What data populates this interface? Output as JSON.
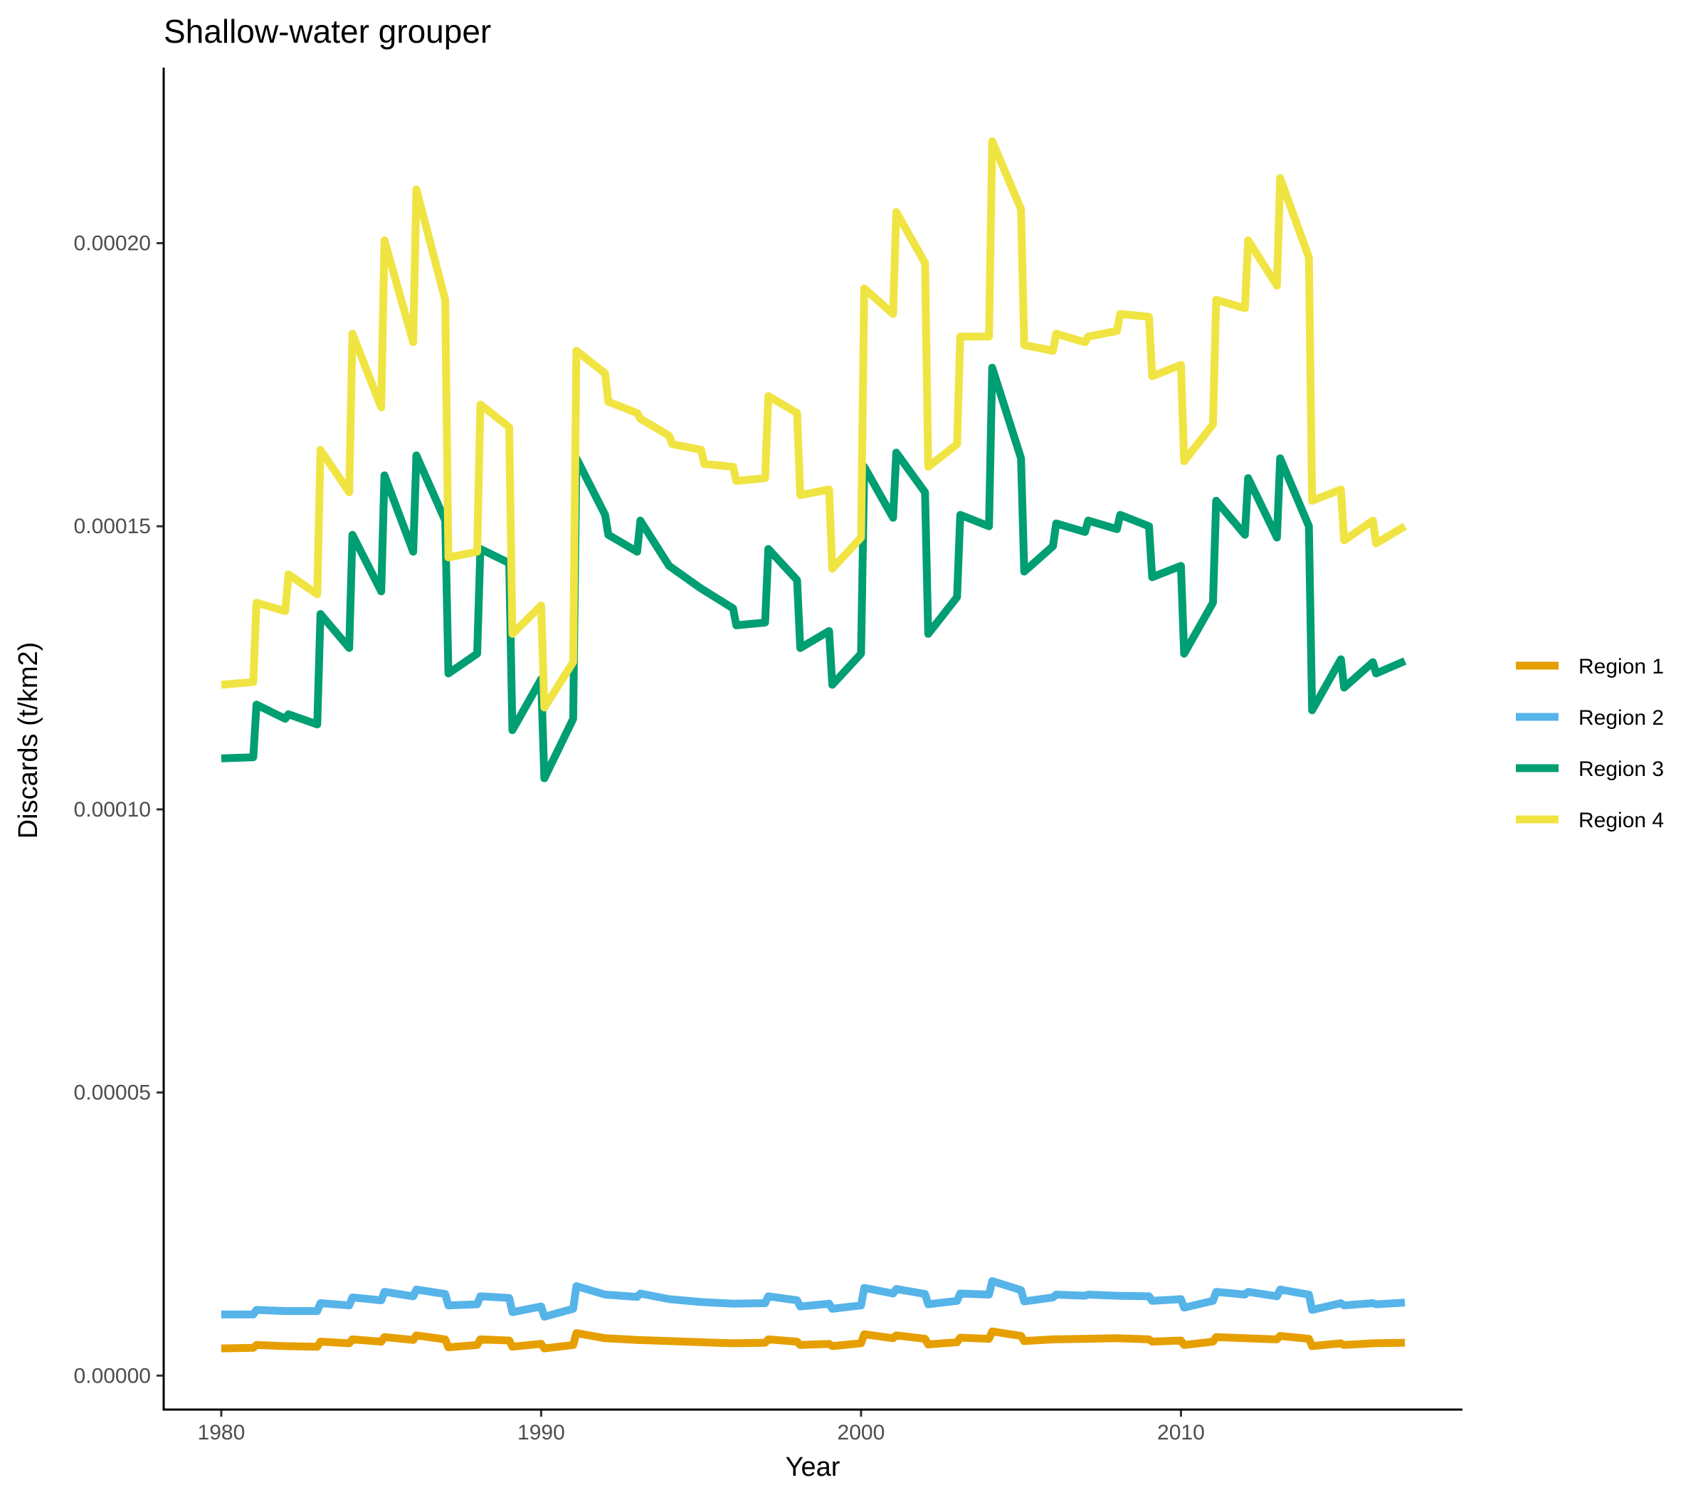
{
  "chart_data": {
    "type": "line",
    "title": "Shallow-water grouper",
    "xlabel": "Year",
    "ylabel": "Discards (t/km2)",
    "xlim": [
      1978.2,
      2018.8
    ],
    "ylim": [
      -6e-06,
      0.000231
    ],
    "x_ticks": [
      1980,
      1990,
      2000,
      2010
    ],
    "x_tick_labels": [
      "1980",
      "1990",
      "2000",
      "2010"
    ],
    "y_ticks": [
      0,
      5e-05,
      0.0001,
      0.00015,
      0.0002
    ],
    "y_tick_labels": [
      "0.00000",
      "0.00005",
      "0.00010",
      "0.00015",
      "0.00020"
    ],
    "grid": false,
    "legend_position": "right",
    "series": [
      {
        "name": "Region 1",
        "color": "#E69F00",
        "points": [
          [
            1980,
            4.8e-06
          ],
          [
            1981,
            4.9e-06
          ],
          [
            1981.1,
            5.4e-06
          ],
          [
            1982,
            5.2e-06
          ],
          [
            1983,
            5.1e-06
          ],
          [
            1983.1,
            6e-06
          ],
          [
            1984,
            5.7e-06
          ],
          [
            1984.1,
            6.4e-06
          ],
          [
            1985,
            6e-06
          ],
          [
            1985.1,
            6.8e-06
          ],
          [
            1986,
            6.3e-06
          ],
          [
            1986.1,
            7.1e-06
          ],
          [
            1987,
            6.4e-06
          ],
          [
            1987.1,
            5e-06
          ],
          [
            1988,
            5.4e-06
          ],
          [
            1988.1,
            6.4e-06
          ],
          [
            1989,
            6.2e-06
          ],
          [
            1989.1,
            5.1e-06
          ],
          [
            1990,
            5.6e-06
          ],
          [
            1990.1,
            4.8e-06
          ],
          [
            1991,
            5.4e-06
          ],
          [
            1991.1,
            7.5e-06
          ],
          [
            1992,
            6.6e-06
          ],
          [
            1993,
            6.3e-06
          ],
          [
            1994,
            6.1e-06
          ],
          [
            1995,
            5.9e-06
          ],
          [
            1996,
            5.7e-06
          ],
          [
            1997,
            5.8e-06
          ],
          [
            1997.1,
            6.4e-06
          ],
          [
            1998,
            6e-06
          ],
          [
            1998.1,
            5.4e-06
          ],
          [
            1999,
            5.6e-06
          ],
          [
            1999.1,
            5.2e-06
          ],
          [
            2000,
            5.7e-06
          ],
          [
            2000.1,
            7.3e-06
          ],
          [
            2001,
            6.6e-06
          ],
          [
            2001.1,
            7.1e-06
          ],
          [
            2002,
            6.5e-06
          ],
          [
            2002.1,
            5.5e-06
          ],
          [
            2003,
            5.9e-06
          ],
          [
            2003.1,
            6.7e-06
          ],
          [
            2004,
            6.5e-06
          ],
          [
            2004.1,
            7.8e-06
          ],
          [
            2005,
            7e-06
          ],
          [
            2005.1,
            6.1e-06
          ],
          [
            2006,
            6.4e-06
          ],
          [
            2007,
            6.5e-06
          ],
          [
            2008,
            6.6e-06
          ],
          [
            2009,
            6.4e-06
          ],
          [
            2009.1,
            6e-06
          ],
          [
            2010,
            6.2e-06
          ],
          [
            2010.1,
            5.4e-06
          ],
          [
            2011,
            6e-06
          ],
          [
            2011.1,
            6.8e-06
          ],
          [
            2012,
            6.6e-06
          ],
          [
            2013,
            6.4e-06
          ],
          [
            2013.1,
            7e-06
          ],
          [
            2014,
            6.5e-06
          ],
          [
            2014.1,
            5.2e-06
          ],
          [
            2015,
            5.7e-06
          ],
          [
            2015.1,
            5.4e-06
          ],
          [
            2016,
            5.7e-06
          ],
          [
            2017,
            5.8e-06
          ]
        ]
      },
      {
        "name": "Region 2",
        "color": "#56B4E9",
        "points": [
          [
            1980,
            1.08e-05
          ],
          [
            1981,
            1.08e-05
          ],
          [
            1981.1,
            1.16e-05
          ],
          [
            1982,
            1.14e-05
          ],
          [
            1983,
            1.14e-05
          ],
          [
            1983.1,
            1.28e-05
          ],
          [
            1984,
            1.24e-05
          ],
          [
            1984.1,
            1.38e-05
          ],
          [
            1985,
            1.33e-05
          ],
          [
            1985.1,
            1.48e-05
          ],
          [
            1986,
            1.4e-05
          ],
          [
            1986.1,
            1.52e-05
          ],
          [
            1987,
            1.44e-05
          ],
          [
            1987.1,
            1.24e-05
          ],
          [
            1988,
            1.26e-05
          ],
          [
            1988.1,
            1.4e-05
          ],
          [
            1989,
            1.37e-05
          ],
          [
            1989.1,
            1.12e-05
          ],
          [
            1990,
            1.22e-05
          ],
          [
            1990.1,
            1.04e-05
          ],
          [
            1991,
            1.18e-05
          ],
          [
            1991.1,
            1.58e-05
          ],
          [
            1992,
            1.43e-05
          ],
          [
            1993,
            1.39e-05
          ],
          [
            1993.1,
            1.45e-05
          ],
          [
            1994,
            1.35e-05
          ],
          [
            1995,
            1.3e-05
          ],
          [
            1996,
            1.27e-05
          ],
          [
            1997,
            1.28e-05
          ],
          [
            1997.1,
            1.4e-05
          ],
          [
            1998,
            1.33e-05
          ],
          [
            1998.1,
            1.22e-05
          ],
          [
            1999,
            1.27e-05
          ],
          [
            1999.1,
            1.18e-05
          ],
          [
            2000,
            1.24e-05
          ],
          [
            2000.1,
            1.55e-05
          ],
          [
            2001,
            1.45e-05
          ],
          [
            2001.1,
            1.53e-05
          ],
          [
            2002,
            1.44e-05
          ],
          [
            2002.1,
            1.26e-05
          ],
          [
            2003,
            1.32e-05
          ],
          [
            2003.1,
            1.45e-05
          ],
          [
            2004,
            1.43e-05
          ],
          [
            2004.1,
            1.67e-05
          ],
          [
            2005,
            1.51e-05
          ],
          [
            2005.1,
            1.31e-05
          ],
          [
            2006,
            1.38e-05
          ],
          [
            2006.1,
            1.43e-05
          ],
          [
            2007,
            1.41e-05
          ],
          [
            2007.1,
            1.43e-05
          ],
          [
            2008,
            1.41e-05
          ],
          [
            2009,
            1.4e-05
          ],
          [
            2009.1,
            1.32e-05
          ],
          [
            2010,
            1.35e-05
          ],
          [
            2010.1,
            1.2e-05
          ],
          [
            2011,
            1.32e-05
          ],
          [
            2011.1,
            1.48e-05
          ],
          [
            2012,
            1.43e-05
          ],
          [
            2012.1,
            1.48e-05
          ],
          [
            2013,
            1.4e-05
          ],
          [
            2013.1,
            1.52e-05
          ],
          [
            2014,
            1.43e-05
          ],
          [
            2014.1,
            1.16e-05
          ],
          [
            2015,
            1.28e-05
          ],
          [
            2015.1,
            1.24e-05
          ],
          [
            2016,
            1.28e-05
          ],
          [
            2016.1,
            1.26e-05
          ],
          [
            2017,
            1.29e-05
          ]
        ]
      },
      {
        "name": "Region 3",
        "color": "#009E73",
        "points": [
          [
            1980,
            0.000109
          ],
          [
            1981,
            0.0001092
          ],
          [
            1981.1,
            0.0001185
          ],
          [
            1982,
            0.000116
          ],
          [
            1982.1,
            0.0001168
          ],
          [
            1983,
            0.000115
          ],
          [
            1983.1,
            0.0001345
          ],
          [
            1984,
            0.0001285
          ],
          [
            1984.1,
            0.0001485
          ],
          [
            1985,
            0.0001385
          ],
          [
            1985.1,
            0.000159
          ],
          [
            1986,
            0.0001455
          ],
          [
            1986.1,
            0.0001625
          ],
          [
            1987,
            0.000151
          ],
          [
            1987.1,
            0.000124
          ],
          [
            1988,
            0.0001275
          ],
          [
            1988.1,
            0.000146
          ],
          [
            1989,
            0.0001435
          ],
          [
            1989.1,
            0.000114
          ],
          [
            1990,
            0.000123
          ],
          [
            1990.1,
            0.0001055
          ],
          [
            1991,
            0.000116
          ],
          [
            1991.1,
            0.000162
          ],
          [
            1992,
            0.000152
          ],
          [
            1992.1,
            0.0001485
          ],
          [
            1993,
            0.0001455
          ],
          [
            1993.1,
            0.000151
          ],
          [
            1994,
            0.000143
          ],
          [
            1995,
            0.000139
          ],
          [
            1996,
            0.0001355
          ],
          [
            1996.1,
            0.0001325
          ],
          [
            1997,
            0.000133
          ],
          [
            1997.1,
            0.000146
          ],
          [
            1998,
            0.0001405
          ],
          [
            1998.1,
            0.0001285
          ],
          [
            1999,
            0.0001315
          ],
          [
            1999.1,
            0.000122
          ],
          [
            2000,
            0.0001275
          ],
          [
            2000.1,
            0.0001605
          ],
          [
            2001,
            0.0001515
          ],
          [
            2001.1,
            0.000163
          ],
          [
            2002,
            0.000156
          ],
          [
            2002.1,
            0.000131
          ],
          [
            2003,
            0.0001375
          ],
          [
            2003.1,
            0.000152
          ],
          [
            2004,
            0.00015
          ],
          [
            2004.1,
            0.000178
          ],
          [
            2005,
            0.000162
          ],
          [
            2005.1,
            0.000142
          ],
          [
            2006,
            0.0001465
          ],
          [
            2006.1,
            0.0001505
          ],
          [
            2007,
            0.000149
          ],
          [
            2007.1,
            0.000151
          ],
          [
            2008,
            0.0001495
          ],
          [
            2008.1,
            0.000152
          ],
          [
            2009,
            0.00015
          ],
          [
            2009.1,
            0.000141
          ],
          [
            2010,
            0.000143
          ],
          [
            2010.1,
            0.0001275
          ],
          [
            2011,
            0.0001365
          ],
          [
            2011.1,
            0.0001545
          ],
          [
            2012,
            0.0001485
          ],
          [
            2012.1,
            0.0001585
          ],
          [
            2013,
            0.000148
          ],
          [
            2013.1,
            0.000162
          ],
          [
            2014,
            0.00015
          ],
          [
            2014.1,
            0.0001175
          ],
          [
            2015,
            0.0001265
          ],
          [
            2015.1,
            0.0001215
          ],
          [
            2016,
            0.000126
          ],
          [
            2016.1,
            0.000124
          ],
          [
            2017,
            0.0001262
          ]
        ]
      },
      {
        "name": "Region 4",
        "color": "#F0E442",
        "points": [
          [
            1980,
            0.000122
          ],
          [
            1981,
            0.0001225
          ],
          [
            1981.1,
            0.0001365
          ],
          [
            1982,
            0.000135
          ],
          [
            1982.1,
            0.0001415
          ],
          [
            1983,
            0.000138
          ],
          [
            1983.1,
            0.0001635
          ],
          [
            1984,
            0.000156
          ],
          [
            1984.1,
            0.000184
          ],
          [
            1985,
            0.000171
          ],
          [
            1985.1,
            0.0002005
          ],
          [
            1986,
            0.0001825
          ],
          [
            1986.1,
            0.0002095
          ],
          [
            1987,
            0.00019
          ],
          [
            1987.1,
            0.0001445
          ],
          [
            1988,
            0.0001455
          ],
          [
            1988.1,
            0.0001715
          ],
          [
            1989,
            0.0001675
          ],
          [
            1989.1,
            0.000131
          ],
          [
            1990,
            0.000136
          ],
          [
            1990.1,
            0.000118
          ],
          [
            1991,
            0.000126
          ],
          [
            1991.1,
            0.000181
          ],
          [
            1992,
            0.000177
          ],
          [
            1992.1,
            0.000172
          ],
          [
            1993,
            0.00017
          ],
          [
            1993.1,
            0.000169
          ],
          [
            1994,
            0.000166
          ],
          [
            1994.1,
            0.0001645
          ],
          [
            1995,
            0.0001635
          ],
          [
            1995.1,
            0.000161
          ],
          [
            1996,
            0.0001605
          ],
          [
            1996.1,
            0.000158
          ],
          [
            1997,
            0.0001585
          ],
          [
            1997.1,
            0.000173
          ],
          [
            1998,
            0.00017
          ],
          [
            1998.1,
            0.0001555
          ],
          [
            1999,
            0.0001565
          ],
          [
            1999.1,
            0.0001425
          ],
          [
            2000,
            0.000148
          ],
          [
            2000.1,
            0.000192
          ],
          [
            2001,
            0.0001875
          ],
          [
            2001.1,
            0.0002055
          ],
          [
            2002,
            0.0001965
          ],
          [
            2002.1,
            0.0001605
          ],
          [
            2003,
            0.0001645
          ],
          [
            2003.1,
            0.0001835
          ],
          [
            2004,
            0.0001835
          ],
          [
            2004.1,
            0.000218
          ],
          [
            2005,
            0.000206
          ],
          [
            2005.1,
            0.000182
          ],
          [
            2006,
            0.000181
          ],
          [
            2006.1,
            0.000184
          ],
          [
            2007,
            0.0001825
          ],
          [
            2007.1,
            0.0001835
          ],
          [
            2008,
            0.0001845
          ],
          [
            2008.1,
            0.0001875
          ],
          [
            2009,
            0.000187
          ],
          [
            2009.1,
            0.0001765
          ],
          [
            2010,
            0.0001785
          ],
          [
            2010.1,
            0.0001615
          ],
          [
            2011,
            0.000168
          ],
          [
            2011.1,
            0.00019
          ],
          [
            2012,
            0.0001885
          ],
          [
            2012.1,
            0.0002005
          ],
          [
            2013,
            0.0001925
          ],
          [
            2013.1,
            0.0002115
          ],
          [
            2014,
            0.0001975
          ],
          [
            2014.1,
            0.0001545
          ],
          [
            2015,
            0.0001565
          ],
          [
            2015.1,
            0.0001475
          ],
          [
            2016,
            0.000151
          ],
          [
            2016.1,
            0.000147
          ],
          [
            2017,
            0.00015
          ]
        ]
      }
    ]
  }
}
